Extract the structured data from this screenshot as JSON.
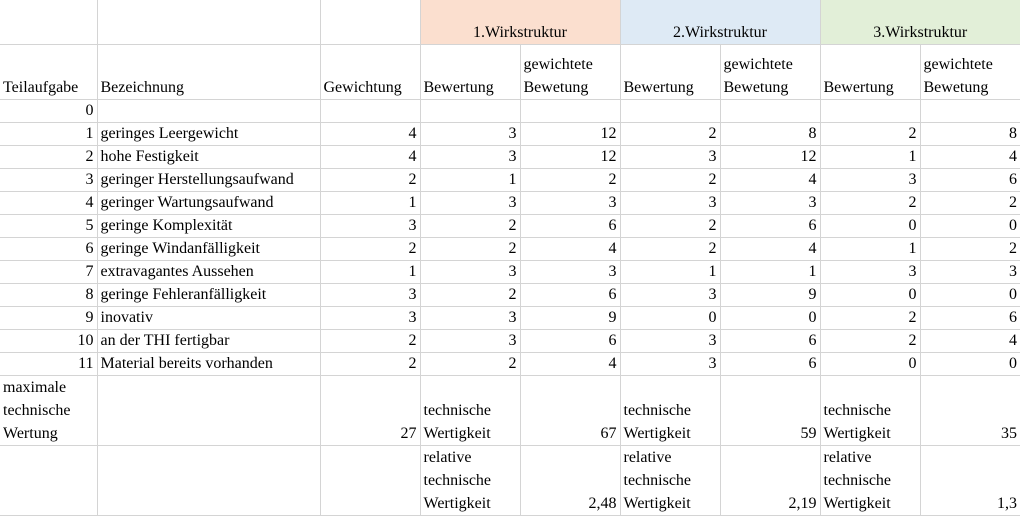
{
  "groups": [
    "1.Wirkstruktur",
    "2.Wirkstruktur",
    "3.Wirkstruktur"
  ],
  "headers": {
    "teilaufgabe": "Teilaufgabe",
    "bezeichnung": "Bezeichnung",
    "gewichtung": "Gewichtung",
    "bewertung": "Bewertung",
    "gewichtete_1": "gewichtete",
    "gewichtete_2": "Bewetung"
  },
  "rows": [
    {
      "nr": "0",
      "name": "",
      "gew": "",
      "b1": "",
      "g1": "",
      "b2": "",
      "g2": "",
      "b3": "",
      "g3": ""
    },
    {
      "nr": "1",
      "name": "geringes Leergewicht",
      "gew": "4",
      "b1": "3",
      "g1": "12",
      "b2": "2",
      "g2": "8",
      "b3": "2",
      "g3": "8"
    },
    {
      "nr": "2",
      "name": "hohe Festigkeit",
      "gew": "4",
      "b1": "3",
      "g1": "12",
      "b2": "3",
      "g2": "12",
      "b3": "1",
      "g3": "4"
    },
    {
      "nr": "3",
      "name": "geringer Herstellungsaufwand",
      "gew": "2",
      "b1": "1",
      "g1": "2",
      "b2": "2",
      "g2": "4",
      "b3": "3",
      "g3": "6"
    },
    {
      "nr": "4",
      "name": "geringer Wartungsaufwand",
      "gew": "1",
      "b1": "3",
      "g1": "3",
      "b2": "3",
      "g2": "3",
      "b3": "2",
      "g3": "2"
    },
    {
      "nr": "5",
      "name": "geringe Komplexität",
      "gew": "3",
      "b1": "2",
      "g1": "6",
      "b2": "2",
      "g2": "6",
      "b3": "0",
      "g3": "0"
    },
    {
      "nr": "6",
      "name": "geringe Windanfälligkeit",
      "gew": "2",
      "b1": "2",
      "g1": "4",
      "b2": "2",
      "g2": "4",
      "b3": "1",
      "g3": "2"
    },
    {
      "nr": "7",
      "name": "extravagantes Aussehen",
      "gew": "1",
      "b1": "3",
      "g1": "3",
      "b2": "1",
      "g2": "1",
      "b3": "3",
      "g3": "3"
    },
    {
      "nr": "8",
      "name": "geringe Fehleranfälligkeit",
      "gew": "3",
      "b1": "2",
      "g1": "6",
      "b2": "3",
      "g2": "9",
      "b3": "0",
      "g3": "0"
    },
    {
      "nr": "9",
      "name": "inovativ",
      "gew": "3",
      "b1": "3",
      "g1": "9",
      "b2": "0",
      "g2": "0",
      "b3": "2",
      "g3": "6"
    },
    {
      "nr": "10",
      "name": "an der THI fertigbar",
      "gew": "2",
      "b1": "3",
      "g1": "6",
      "b2": "3",
      "g2": "6",
      "b3": "2",
      "g3": "4"
    },
    {
      "nr": "11",
      "name": "Material bereits vorhanden",
      "gew": "2",
      "b1": "2",
      "g1": "4",
      "b2": "3",
      "g2": "6",
      "b3": "0",
      "g3": "0"
    }
  ],
  "summary": {
    "max_label_1": "maximale",
    "max_label_2": "technische",
    "max_label_3": "Wertung",
    "max_value": "27",
    "tw_label_1": "technische",
    "tw_label_2": "Wertigkeit",
    "tw_values": [
      "67",
      "59",
      "35"
    ],
    "rel_label_1": "relative",
    "rel_label_2": "technische",
    "rel_label_3": "Wertigkeit",
    "rel_values": [
      "2,48",
      "2,19",
      "1,3"
    ]
  }
}
